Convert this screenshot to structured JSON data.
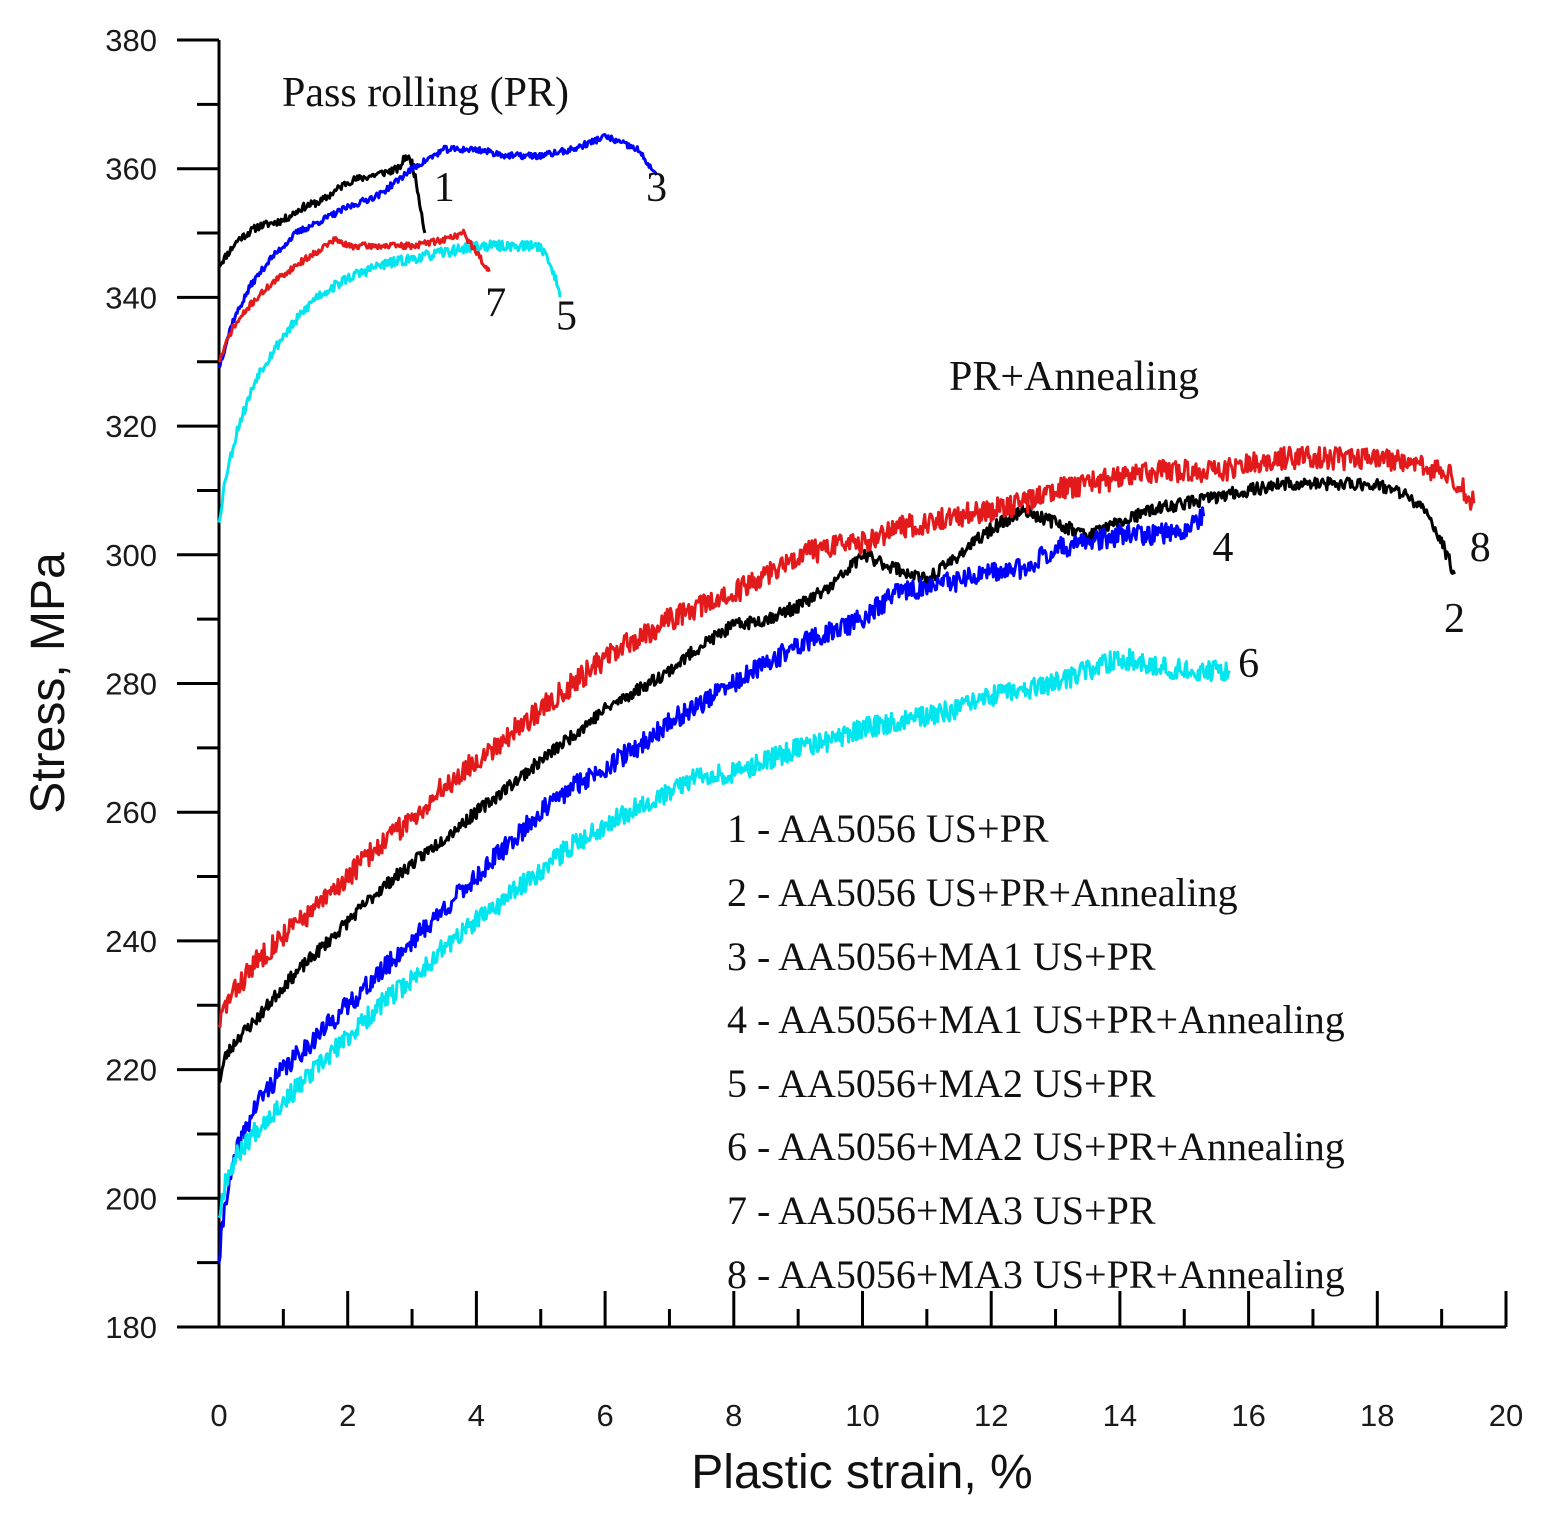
{
  "chart_data": {
    "type": "line",
    "xlabel": "Plastic strain, %",
    "ylabel": "Stress, MPa",
    "xlim": [
      0,
      20
    ],
    "ylim": [
      180,
      380
    ],
    "xticks": [
      0,
      2,
      4,
      6,
      8,
      10,
      12,
      14,
      16,
      18,
      20
    ],
    "yticks": [
      180,
      200,
      220,
      240,
      260,
      280,
      300,
      320,
      340,
      360,
      380
    ],
    "grid": false,
    "annotations": [
      {
        "name": "pass-rolling",
        "text": "Pass rolling (PR)",
        "x": 5.0,
        "y": 372.5
      },
      {
        "name": "pr-annealing",
        "text": "PR+Annealing",
        "x": 13.9,
        "y": 328.5
      }
    ],
    "series": [
      {
        "id": "1",
        "name": "1 - AA5056 US+PR",
        "color": "#000000",
        "noise": 0.6,
        "seed": 11,
        "label": {
          "text": "1",
          "x": 3.5,
          "y": 355
        },
        "x": [
          0,
          0.3,
          0.6,
          1.0,
          1.3,
          1.6,
          2.0,
          2.4,
          2.8,
          2.9,
          3.0,
          3.1,
          3.2
        ],
        "y": [
          345,
          349,
          351,
          352,
          354,
          355,
          358,
          359,
          360,
          362,
          361,
          356,
          350
        ]
      },
      {
        "id": "2",
        "name": "2 - AA5056 US+PR+Annealing",
        "color": "#000000",
        "noise": 1.0,
        "seed": 23,
        "label": {
          "text": "2",
          "x": 19.2,
          "y": 288
        },
        "x": [
          0,
          0.1,
          0.3,
          0.6,
          1.0,
          1.5,
          2.0,
          2.5,
          3.0,
          3.5,
          4.0,
          4.5,
          5.0,
          5.5,
          6.0,
          6.5,
          7.0,
          7.5,
          8.0,
          8.5,
          9.0,
          9.5,
          10.0,
          10.5,
          11.0,
          11.5,
          12.0,
          12.5,
          13.0,
          13.5,
          14.0,
          14.5,
          15.0,
          15.5,
          16.0,
          16.5,
          17.0,
          17.5,
          18.0,
          18.5,
          18.8,
          19.0,
          19.2
        ],
        "y": [
          218,
          222,
          225,
          228,
          233,
          238,
          243,
          248,
          252,
          256,
          260,
          264,
          268,
          272,
          276,
          279,
          282,
          286,
          289,
          290,
          292,
          295,
          300,
          298,
          296,
          300,
          304,
          307,
          305,
          303,
          305,
          307,
          308,
          309,
          310,
          311,
          311,
          311,
          311,
          309,
          306,
          302,
          297
        ]
      },
      {
        "id": "3",
        "name": "3 - AA5056+MA1 US+PR",
        "color": "#0000ff",
        "noise": 0.5,
        "seed": 37,
        "label": {
          "text": "3",
          "x": 6.8,
          "y": 355
        },
        "x": [
          0,
          0.2,
          0.5,
          0.8,
          1.2,
          1.6,
          2.0,
          2.5,
          3.0,
          3.5,
          4.0,
          4.5,
          5.0,
          5.5,
          6.0,
          6.5,
          6.8
        ],
        "y": [
          329,
          336,
          342,
          346,
          350,
          352,
          354,
          356,
          360,
          363,
          363,
          362,
          362,
          363,
          365,
          363,
          359
        ]
      },
      {
        "id": "4",
        "name": "4 - AA5056+MA1 US+PR+Annealing",
        "color": "#0000ff",
        "noise": 1.6,
        "seed": 41,
        "label": {
          "text": "4",
          "x": 15.6,
          "y": 299
        },
        "x": [
          0,
          0.1,
          0.3,
          0.6,
          1.0,
          1.5,
          2.0,
          2.5,
          3.0,
          3.5,
          4.0,
          4.5,
          5.0,
          5.5,
          6.0,
          6.5,
          7.0,
          7.5,
          8.0,
          8.5,
          9.0,
          9.5,
          10.0,
          10.5,
          11.0,
          11.5,
          12.0,
          12.5,
          13.0,
          13.5,
          14.0,
          14.5,
          15.0,
          15.3
        ],
        "y": [
          190,
          200,
          208,
          215,
          220,
          225,
          230,
          235,
          240,
          245,
          250,
          255,
          260,
          264,
          267,
          270,
          274,
          277,
          280,
          283,
          286,
          288,
          290,
          294,
          295,
          296,
          297,
          298,
          301,
          302,
          303,
          303,
          304,
          306
        ]
      },
      {
        "id": "5",
        "name": "5 - AA5056+MA2 US+PR",
        "color": "#00e5ee",
        "noise": 0.8,
        "seed": 53,
        "label": {
          "text": "5",
          "x": 5.4,
          "y": 335
        },
        "x": [
          0,
          0.1,
          0.3,
          0.6,
          1.0,
          1.5,
          2.0,
          2.5,
          3.0,
          3.5,
          4.0,
          4.5,
          5.0,
          5.2,
          5.3
        ],
        "y": [
          305,
          312,
          320,
          328,
          334,
          340,
          343,
          345,
          346,
          347,
          348,
          348,
          348,
          344,
          340
        ]
      },
      {
        "id": "6",
        "name": "6 - AA5056+MA2 US+PR+Annealing",
        "color": "#00e5ee",
        "noise": 1.6,
        "seed": 67,
        "label": {
          "text": "6",
          "x": 16.0,
          "y": 281
        },
        "x": [
          0,
          0.1,
          0.3,
          0.6,
          1.0,
          1.5,
          2.0,
          2.5,
          3.0,
          3.5,
          4.0,
          4.5,
          5.0,
          5.5,
          6.0,
          6.5,
          7.0,
          7.5,
          8.0,
          8.5,
          9.0,
          9.5,
          10.0,
          10.5,
          11.0,
          11.5,
          12.0,
          12.5,
          13.0,
          13.5,
          14.0,
          14.5,
          15.0,
          15.5,
          15.7
        ],
        "y": [
          197,
          203,
          207,
          211,
          215,
          220,
          225,
          230,
          234,
          239,
          243,
          247,
          251,
          255,
          258,
          261,
          263,
          266,
          266,
          268,
          270,
          271,
          273,
          274,
          275,
          276,
          278,
          279,
          280,
          282,
          284,
          283,
          282,
          282,
          282
        ]
      },
      {
        "id": "7",
        "name": "7 - AA5056+MA3 US+PR",
        "color": "#e31a1c",
        "noise": 0.5,
        "seed": 71,
        "label": {
          "text": "7",
          "x": 4.3,
          "y": 337
        },
        "x": [
          0,
          0.2,
          0.5,
          0.8,
          1.2,
          1.5,
          1.8,
          2.0,
          2.5,
          3.0,
          3.5,
          3.8,
          4.0,
          4.2
        ],
        "y": [
          330,
          335,
          339,
          342,
          345,
          347,
          349,
          348,
          348,
          348,
          349,
          350,
          347,
          344
        ]
      },
      {
        "id": "8",
        "name": "8 - AA5056+MA3 US+PR+Annealing",
        "color": "#e31a1c",
        "noise": 1.8,
        "seed": 83,
        "label": {
          "text": "8",
          "x": 19.6,
          "y": 299
        },
        "x": [
          0,
          0.1,
          0.3,
          0.6,
          1.0,
          1.5,
          2.0,
          2.5,
          3.0,
          3.5,
          4.0,
          4.5,
          5.0,
          5.5,
          6.0,
          6.5,
          7.0,
          7.5,
          8.0,
          8.5,
          9.0,
          9.5,
          10.0,
          10.5,
          11.0,
          11.5,
          12.0,
          12.5,
          13.0,
          13.5,
          14.0,
          14.5,
          15.0,
          15.5,
          16.0,
          16.5,
          17.0,
          17.5,
          18.0,
          18.5,
          19.0,
          19.3,
          19.5
        ],
        "y": [
          227,
          230,
          233,
          237,
          241,
          245,
          250,
          255,
          259,
          264,
          268,
          272,
          276,
          280,
          284,
          287,
          290,
          292,
          294,
          297,
          300,
          301,
          302,
          304,
          305,
          306,
          307,
          308,
          310,
          311,
          312,
          313,
          313,
          313,
          314,
          315,
          315,
          315,
          315,
          314,
          313,
          311,
          308
        ]
      }
    ]
  }
}
